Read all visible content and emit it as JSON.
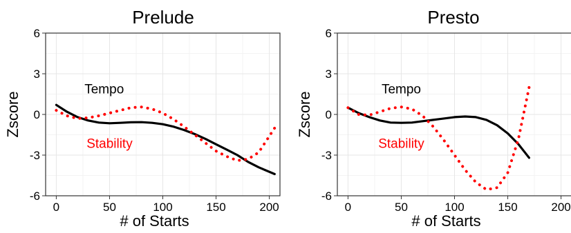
{
  "chart_data": [
    {
      "type": "line",
      "title": "Prelude",
      "xlabel": "# of Starts",
      "ylabel": "Zscore",
      "xlim": [
        -10,
        210
      ],
      "ylim": [
        -6,
        6
      ],
      "xticks": [
        0,
        50,
        100,
        150,
        200
      ],
      "yticks": [
        -6,
        -3,
        0,
        3,
        6
      ],
      "grid": true,
      "annotations": [
        {
          "text": "Tempo",
          "color": "#000000",
          "x": 45,
          "y": 1.9
        },
        {
          "text": "Stability",
          "color": "#ff0000",
          "x": 50,
          "y": -2.1
        }
      ],
      "series": [
        {
          "color": "#000000",
          "style": "solid",
          "x": [
            0,
            10,
            20,
            30,
            40,
            50,
            60,
            70,
            80,
            90,
            100,
            110,
            120,
            130,
            140,
            150,
            160,
            170,
            180,
            190,
            205
          ],
          "y": [
            0.7,
            0.2,
            -0.2,
            -0.45,
            -0.6,
            -0.65,
            -0.62,
            -0.58,
            -0.57,
            -0.62,
            -0.72,
            -0.9,
            -1.15,
            -1.45,
            -1.8,
            -2.2,
            -2.6,
            -3.0,
            -3.5,
            -3.9,
            -4.4
          ]
        },
        {
          "color": "#ff0000",
          "style": "dotted",
          "x": [
            0,
            10,
            20,
            30,
            40,
            50,
            60,
            70,
            80,
            90,
            100,
            110,
            120,
            130,
            140,
            150,
            160,
            170,
            180,
            190,
            205
          ],
          "y": [
            0.3,
            -0.1,
            -0.3,
            -0.25,
            -0.1,
            0.1,
            0.3,
            0.5,
            0.55,
            0.4,
            0.1,
            -0.35,
            -0.9,
            -1.5,
            -2.1,
            -2.7,
            -3.1,
            -3.4,
            -3.3,
            -2.8,
            -1.0
          ]
        }
      ]
    },
    {
      "type": "line",
      "title": "Presto",
      "xlabel": "# of Starts",
      "ylabel": "Zscore",
      "xlim": [
        -10,
        210
      ],
      "ylim": [
        -6,
        6
      ],
      "xticks": [
        0,
        50,
        100,
        150,
        200
      ],
      "yticks": [
        -6,
        -3,
        0,
        3,
        6
      ],
      "grid": true,
      "annotations": [
        {
          "text": "Tempo",
          "color": "#000000",
          "x": 50,
          "y": 1.9
        },
        {
          "text": "Stability",
          "color": "#ff0000",
          "x": 50,
          "y": -2.1
        }
      ],
      "series": [
        {
          "color": "#000000",
          "style": "solid",
          "x": [
            0,
            10,
            20,
            30,
            40,
            50,
            60,
            70,
            80,
            90,
            100,
            110,
            120,
            130,
            140,
            150,
            160,
            170
          ],
          "y": [
            0.5,
            0.1,
            -0.2,
            -0.45,
            -0.6,
            -0.62,
            -0.6,
            -0.5,
            -0.4,
            -0.3,
            -0.2,
            -0.15,
            -0.2,
            -0.4,
            -0.8,
            -1.4,
            -2.2,
            -3.2
          ]
        },
        {
          "color": "#ff0000",
          "style": "dotted",
          "x": [
            0,
            10,
            20,
            30,
            40,
            50,
            60,
            70,
            80,
            90,
            100,
            110,
            120,
            130,
            140,
            150,
            160,
            170
          ],
          "y": [
            0.5,
            0.0,
            -0.05,
            0.2,
            0.45,
            0.55,
            0.4,
            -0.1,
            -0.9,
            -1.9,
            -3.0,
            -4.1,
            -5.0,
            -5.55,
            -5.4,
            -4.3,
            -1.8,
            2.0
          ]
        }
      ]
    }
  ]
}
